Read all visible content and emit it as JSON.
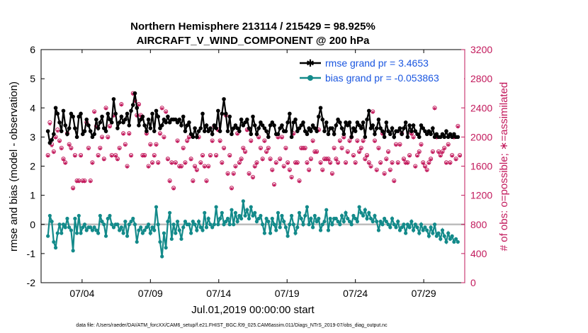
{
  "chart_data": {
    "type": "line",
    "title": "Northern Hemisphere 213114 / 215429 = 98.925%",
    "subtitle": "AIRCRAFT_V_WIND_COMPONENT @ 200 hPa",
    "ylabel_left": "rmse and bias (model - observation)",
    "ylabel_right": "# of obs: o=possible; ∗=assimilated",
    "xlabel": "Jul.01,2019 00:00:00 start",
    "footer": "data file: /Users/raeder/DAI/ATM_forcXX/CAM6_setup/f.e21.FHIST_BGC.f09_025.CAM6assim.011/Diags_NTrS_2019-07/obs_diag_output.nc",
    "xlim": [
      1,
      32
    ],
    "ylim_left": [
      -2,
      6
    ],
    "ylim_right": [
      0,
      3200
    ],
    "yticks_left": [
      "-2",
      "-1",
      "0",
      "1",
      "2",
      "3",
      "4",
      "5",
      "6"
    ],
    "yticks_right": [
      "0",
      "400",
      "800",
      "1200",
      "1600",
      "2000",
      "2400",
      "2800",
      "3200"
    ],
    "xticks": [
      {
        "label": "07/04",
        "day": 4
      },
      {
        "label": "07/09",
        "day": 9
      },
      {
        "label": "07/14",
        "day": 14
      },
      {
        "label": "07/19",
        "day": 19
      },
      {
        "label": "07/24",
        "day": 24
      },
      {
        "label": "07/29",
        "day": 29
      }
    ],
    "grid": false,
    "legend_position": "top-right",
    "colors": {
      "rmse": "#000000",
      "bias": "#138a8a",
      "obs": "#c2185b",
      "zero": "#bdbdbd"
    },
    "series": [
      {
        "name": "rmse grand pr = 3.4653",
        "values": [
          3.2,
          2.8,
          2.9,
          3.1,
          4.0,
          3.8,
          3.5,
          3.2,
          3.9,
          3.4,
          3.1,
          3.3,
          3.8,
          3.7,
          3.3,
          3.0,
          3.7,
          3.8,
          3.1,
          3.2,
          3.6,
          3.4,
          3.2,
          3.0,
          3.1,
          3.6,
          3.3,
          3.5,
          3.7,
          3.3,
          3.2,
          3.8,
          3.6,
          3.5,
          4.3,
          3.8,
          3.3,
          3.5,
          3.7,
          3.5,
          3.6,
          3.8,
          3.4,
          3.9,
          4.1,
          4.5,
          4.0,
          3.4,
          3.6,
          3.7,
          3.4,
          3.2,
          3.6,
          3.3,
          3.8,
          3.2,
          3.9,
          3.7,
          3.3,
          3.4,
          3.6,
          3.5,
          3.7,
          3.5,
          3.6,
          3.6,
          3.6,
          3.5,
          3.6,
          3.4,
          3.7,
          3.2,
          3.4,
          3.5,
          3.1,
          3.0,
          3.3,
          3.0,
          3.2,
          3.3,
          3.8,
          3.2,
          3.4,
          3.2,
          3.3,
          3.1,
          3.4,
          3.3,
          3.9,
          3.2,
          3.8,
          4.3,
          3.8,
          3.2,
          3.7,
          3.1,
          3.3,
          3.4,
          3.3,
          3.2,
          3.6,
          3.4,
          3.5,
          3.6,
          3.3,
          3.1,
          3.7,
          3.4,
          3.1,
          3.3,
          3.5,
          3.4,
          3.3,
          3.2,
          3.0,
          3.4,
          3.5,
          3.4,
          3.1,
          3.1,
          3.3,
          3.4,
          3.2,
          3.2,
          3.5,
          3.8,
          3.0,
          3.5,
          3.6,
          3.2,
          3.3,
          3.4,
          3.5,
          3.2,
          3.1,
          3.3,
          3.2,
          3.4,
          3.3,
          3.2,
          3.7,
          4.0,
          3.6,
          3.2,
          3.5,
          3.1,
          3.3,
          3.3,
          3.1,
          3.4,
          3.6,
          3.5,
          3.3,
          3.1,
          3.5,
          3.4,
          3.5,
          3.0,
          3.3,
          3.2,
          3.5,
          3.4,
          3.3,
          3.5,
          3.0,
          3.6,
          3.9,
          3.3,
          3.4,
          3.1,
          3.3,
          3.6,
          3.3,
          3.2,
          3.0,
          3.5,
          3.2,
          3.1,
          3.3,
          3.0,
          3.2,
          3.2,
          3.3,
          3.1,
          3.3,
          3.5,
          3.0,
          3.4,
          3.2,
          3.4,
          3.2,
          3.1,
          3.0,
          3.4,
          3.3,
          3.2,
          3.1,
          3.2,
          3.1,
          3.3,
          3.0,
          3.1,
          3.0,
          3.0,
          3.1,
          3.0,
          3.2,
          3.0,
          3.1,
          3.0,
          3.1,
          3.0,
          3.0
        ]
      },
      {
        "name": "bias grand pr = -0.053863",
        "values": [
          -0.4,
          0.3,
          0.1,
          -0.6,
          -0.8,
          -0.3,
          0.0,
          -0.3,
          0.0,
          -0.1,
          0.2,
          -0.1,
          -0.2,
          -0.9,
          0.2,
          -0.3,
          0.3,
          -0.3,
          -0.1,
          0.0,
          -0.2,
          -0.1,
          -0.1,
          -0.2,
          -0.1,
          -0.2,
          -0.3,
          0.3,
          0.1,
          0.0,
          -0.4,
          0.2,
          0.3,
          0.0,
          -0.1,
          0.0,
          0.0,
          -0.2,
          -0.1,
          -0.3,
          0.1,
          -0.4,
          0.0,
          0.1,
          0.2,
          0.0,
          -0.6,
          -0.2,
          -0.1,
          -0.3,
          -0.2,
          -0.1,
          0.0,
          -0.3,
          -0.1,
          -0.2,
          0.6,
          0.0,
          -0.6,
          -1.1,
          -0.3,
          -0.8,
          0.1,
          0.4,
          -0.5,
          0.0,
          -0.3,
          0.1,
          -0.2,
          -0.5,
          -0.1,
          0.1,
          0.0,
          0.0,
          -0.3,
          0.1,
          0.0,
          -0.2,
          0.1,
          -0.1,
          -0.2,
          0.4,
          -0.1,
          0.2,
          0.0,
          -0.1,
          0.0,
          0.6,
          0.0,
          0.2,
          0.4,
          0.0,
          0.1,
          0.2,
          0.0,
          0.5,
          0.0,
          0.4,
          0.1,
          0.3,
          0.2,
          0.8,
          0.3,
          0.5,
          0.2,
          0.6,
          0.3,
          0.4,
          0.1,
          0.2,
          0.3,
          0.0,
          -0.3,
          0.2,
          0.1,
          -0.3,
          0.2,
          0.0,
          -0.2,
          0.4,
          -0.1,
          0.3,
          0.1,
          -0.1,
          -0.4,
          0.0,
          0.3,
          0.0,
          -0.3,
          -0.1,
          0.4,
          0.2,
          0.0,
          0.3,
          0.6,
          0.0,
          0.2,
          -0.1,
          0.3,
          0.1,
          0.2,
          -0.2,
          0.0,
          0.1,
          0.5,
          -0.2,
          0.2,
          0.0,
          0.2,
          0.2,
          0.1,
          0.0,
          0.3,
          0.1,
          0.4,
          0.2,
          0.1,
          0.0,
          0.3,
          0.2,
          0.1,
          0.6,
          0.4,
          0.3,
          0.5,
          0.2,
          0.4,
          0.2,
          0.1,
          0.3,
          0.1,
          -0.2,
          0.1,
          0.0,
          0.2,
          0.1,
          0.0,
          -0.1,
          0.2,
          0.0,
          -0.1,
          0.1,
          -0.2,
          -0.1,
          0.0,
          -0.3,
          0.0,
          -0.1,
          0.1,
          -0.2,
          0.0,
          -0.1,
          -0.3,
          0.0,
          -0.2,
          -0.1,
          -0.2,
          -0.4,
          -0.1,
          -0.3,
          0.0,
          -0.4,
          -0.3,
          -0.5,
          -0.2,
          -0.4,
          -0.6,
          -0.3,
          -0.5,
          -0.4,
          -0.6,
          -0.5,
          -0.6
        ]
      },
      {
        "name": "# of obs possible",
        "values": [
          1750,
          2200,
          1900,
          1800,
          2000,
          2100,
          1950,
          1850,
          1700,
          1650,
          2050,
          1900,
          1850,
          1300,
          1750,
          1400,
          1400,
          1750,
          1400,
          1400,
          2200,
          1850,
          1400,
          1650,
          2350,
          2150,
          1750,
          1850,
          2000,
          1700,
          2400,
          2000,
          2150,
          1750,
          2300,
          1750,
          1700,
          1850,
          2450,
          2050,
          1900,
          1600,
          2050,
          1750,
          2600,
          2500,
          2300,
          2450,
          2300,
          1750,
          1750,
          2050,
          1600,
          1900,
          1650,
          1750,
          1900,
          1650,
          2050,
          2400,
          2000,
          2350,
          1700,
          1400,
          1650,
          1300,
          1650,
          1950,
          1600,
          1600,
          1850,
          1650,
          1950,
          2000,
          1700,
          1400,
          1600,
          1550,
          2000,
          1650,
          1750,
          1600,
          1400,
          1600,
          1750,
          1950,
          2150,
          1750,
          2100,
          1950,
          1650,
          1850,
          2300,
          1500,
          1750,
          1300,
          1500,
          1600,
          2050,
          1650,
          1700,
          1850,
          1800,
          2100,
          1500,
          1950,
          1450,
          1600,
          1650,
          2000,
          1850,
          1700,
          1950,
          1800,
          1850,
          1700,
          1550,
          1350,
          1650,
          2000,
          1700,
          2000,
          1600,
          1850,
          1650,
          1550,
          1450,
          2050,
          1650,
          1650,
          1400,
          1850,
          1850,
          1850,
          1650,
          1550,
          1700,
          1950,
          1800,
          1800,
          2100,
          1650,
          1550,
          1700,
          1700,
          1700,
          1650,
          1500,
          1850,
          1700,
          1650,
          1950,
          1850,
          2000,
          1650,
          1800,
          1950,
          2000,
          1750,
          1650,
          1950,
          1800,
          1850,
          1950,
          1700,
          1750,
          1650,
          1600,
          2350,
          1950,
          1550,
          1850,
          1650,
          2050,
          1500,
          1700,
          1800,
          1550,
          1650,
          1400,
          1900,
          1650,
          1900,
          2050,
          1700,
          1650,
          1650,
          1750,
          2050,
          2000,
          1600,
          1750,
          1800,
          1900,
          1650,
          1600,
          1550,
          1650,
          1700,
          1800,
          2400,
          2000,
          1800,
          1750,
          1800,
          1850,
          1650,
          1900,
          1650,
          1750,
          2000,
          1700,
          2150,
          1750
        ]
      },
      {
        "name": "# of obs assimilated",
        "values": [
          1740,
          2180,
          1880,
          1790,
          1990,
          2080,
          1940,
          1840,
          1690,
          1640,
          2040,
          1890,
          1840,
          1290,
          1740,
          1390,
          1390,
          1740,
          1390,
          1390,
          2190,
          1840,
          1390,
          1640,
          2340,
          2140,
          1740,
          1840,
          1990,
          1690,
          2390,
          1990,
          2140,
          1740,
          2290,
          1740,
          1690,
          1840,
          2440,
          2040,
          1890,
          1590,
          2040,
          1740,
          2590,
          2490,
          2290,
          2440,
          2290,
          1740,
          1740,
          2040,
          1590,
          1890,
          1640,
          1740,
          1890,
          1640,
          2040,
          2390,
          1990,
          2340,
          1690,
          1390,
          1640,
          1290,
          1640,
          1940,
          1590,
          1590,
          1840,
          1640,
          1940,
          1990,
          1690,
          1390,
          1590,
          1540,
          1990,
          1640,
          1740,
          1590,
          1390,
          1590,
          1740,
          1940,
          2140,
          1740,
          2090,
          1940,
          1640,
          1840,
          2290,
          1490,
          1740,
          1290,
          1490,
          1590,
          2040,
          1640,
          1690,
          1840,
          1790,
          2090,
          1490,
          1940,
          1440,
          1590,
          1640,
          1990,
          1840,
          1690,
          1940,
          1790,
          1840,
          1690,
          1540,
          1340,
          1640,
          1990,
          1690,
          1990,
          1590,
          1840,
          1640,
          1540,
          1440,
          2040,
          1640,
          1640,
          1390,
          1840,
          1840,
          1840,
          1640,
          1540,
          1690,
          1940,
          1790,
          1790,
          2090,
          1640,
          1540,
          1690,
          1690,
          1690,
          1640,
          1490,
          1840,
          1690,
          1640,
          1940,
          1840,
          1990,
          1640,
          1790,
          1940,
          1990,
          1740,
          1640,
          1940,
          1790,
          1840,
          1940,
          1690,
          1740,
          1640,
          1590,
          2340,
          1940,
          1540,
          1840,
          1640,
          2040,
          1490,
          1690,
          1790,
          1540,
          1640,
          1390,
          1890,
          1640,
          1890,
          2040,
          1690,
          1640,
          1640,
          1740,
          2040,
          1990,
          1590,
          1740,
          1790,
          1890,
          1640,
          1590,
          1540,
          1640,
          1690,
          1790,
          2390,
          1990,
          1790,
          1740,
          1790,
          1840,
          1640,
          1890,
          1640,
          1740,
          1990,
          1690,
          2140,
          1740
        ]
      }
    ]
  }
}
